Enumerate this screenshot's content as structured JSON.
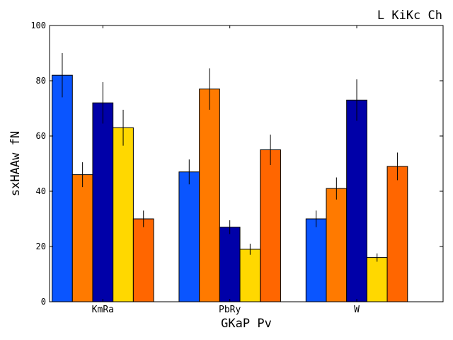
{
  "chart_data": {
    "type": "bar",
    "title": "L KiKc Ch",
    "xlabel": "GKaP  Pv",
    "ylabel": "sxHAAw  fN",
    "categories": [
      "KmRa",
      "PbRy",
      "W"
    ],
    "ylim": [
      0,
      100
    ],
    "yticks": [
      0,
      20,
      40,
      60,
      80,
      100
    ],
    "grid": false,
    "series": [
      {
        "color": "#0a55ff",
        "values": [
          82,
          47,
          30
        ],
        "errors": [
          8,
          4.5,
          3
        ]
      },
      {
        "color": "#ff7a00",
        "values": [
          46,
          77,
          41
        ],
        "errors": [
          4.5,
          7.5,
          4
        ]
      },
      {
        "color": "#0000a8",
        "values": [
          72,
          27,
          73
        ],
        "errors": [
          7.5,
          2.5,
          7.5
        ]
      },
      {
        "color": "#ffd800",
        "values": [
          63,
          19,
          16
        ],
        "errors": [
          6.5,
          2,
          1.5
        ]
      },
      {
        "color": "#ff6600",
        "values": [
          30,
          55,
          49
        ],
        "errors": [
          3,
          5.5,
          5
        ]
      }
    ]
  }
}
